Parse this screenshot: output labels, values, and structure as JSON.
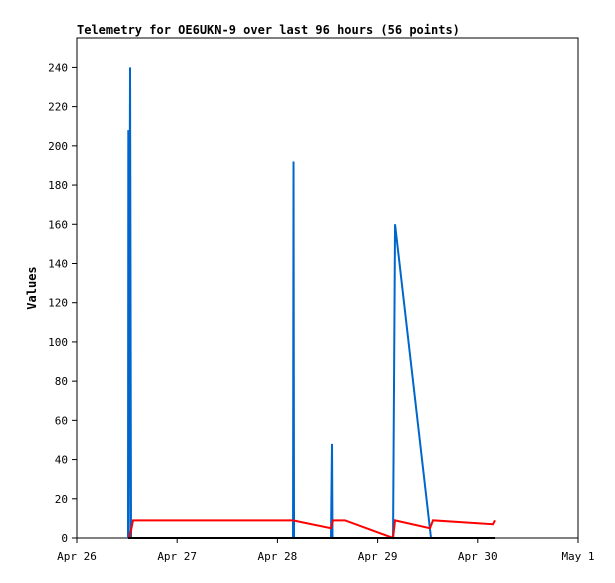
{
  "chart_data": {
    "type": "line",
    "title": "Telemetry for OE6UKN-9 over last 96 hours (56 points)",
    "y_label": "Values",
    "xlim": [
      0,
      5
    ],
    "xticks": [
      {
        "value": 0,
        "label": "Apr 26"
      },
      {
        "value": 1,
        "label": "Apr 27"
      },
      {
        "value": 2,
        "label": "Apr 28"
      },
      {
        "value": 3,
        "label": "Apr 29"
      },
      {
        "value": 4,
        "label": "Apr 30"
      },
      {
        "value": 5,
        "label": "May 1"
      }
    ],
    "ylim": [
      0,
      255
    ],
    "yticks": [
      0,
      20,
      40,
      60,
      80,
      100,
      120,
      140,
      160,
      180,
      200,
      220,
      240
    ],
    "grid": false,
    "series": [
      {
        "color": "#0066cc",
        "x": [
          0.509,
          0.512,
          0.516,
          0.529,
          0.539,
          2.156,
          2.161,
          2.166,
          2.535,
          2.54,
          2.545,
          2.55,
          3.154,
          3.164,
          3.174,
          3.533
        ],
        "values": [
          0,
          208,
          0,
          240,
          0,
          0,
          192,
          0,
          0,
          25,
          48,
          0,
          0,
          80,
          160,
          0
        ]
      },
      {
        "color": "#ff0000",
        "x": [
          0.519,
          0.539,
          0.559,
          2.156,
          2.535,
          2.555,
          2.674,
          3.154,
          3.174,
          3.523,
          3.553,
          4.152,
          4.172
        ],
        "values": [
          0,
          4,
          9,
          9,
          5,
          9,
          9,
          0,
          9,
          5,
          9,
          7,
          9
        ]
      },
      {
        "color": "#000000",
        "x": [
          0.509,
          4.172
        ],
        "values": [
          0,
          0
        ]
      }
    ]
  }
}
